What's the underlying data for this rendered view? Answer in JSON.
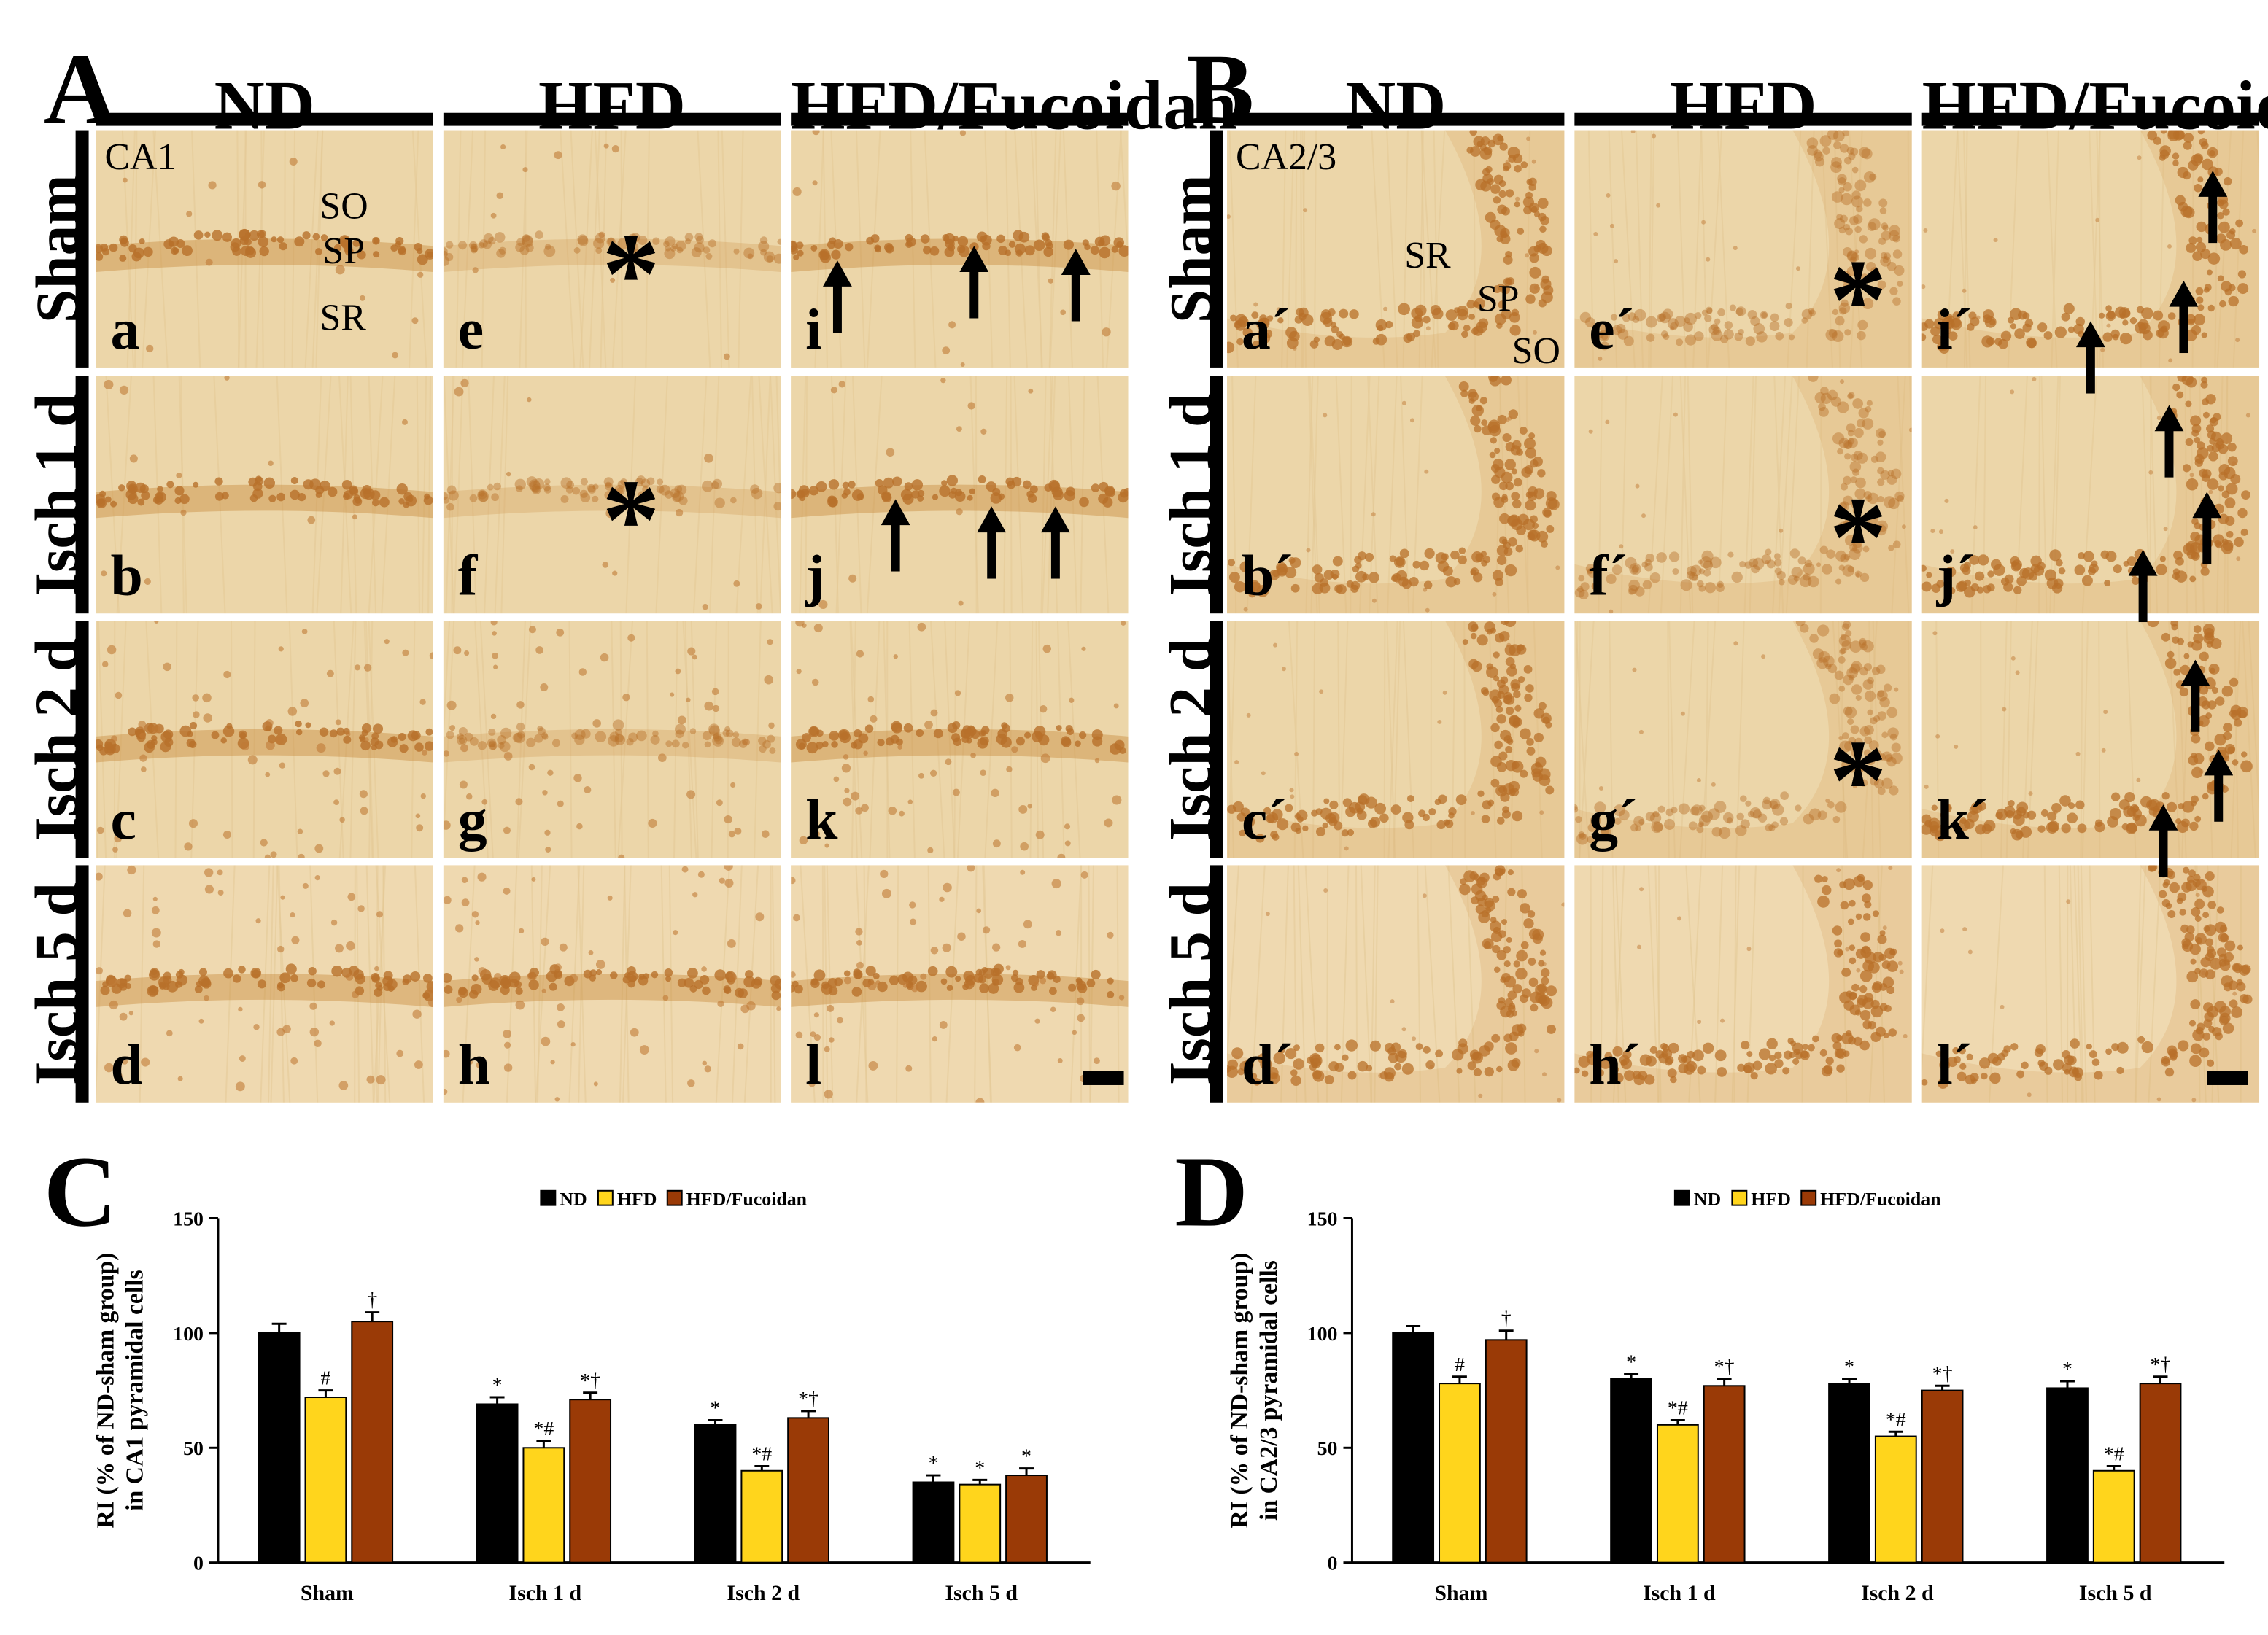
{
  "panels": {
    "A": {
      "letter": "A",
      "region": "CA1",
      "columns": [
        "ND",
        "HFD",
        "HFD/Fucoidan"
      ],
      "rows": [
        "Sham",
        "Isch 1 d",
        "Isch 2 d",
        "Isch 5 d"
      ],
      "tile_letters": [
        [
          "a",
          "e",
          "i"
        ],
        [
          "b",
          "f",
          "j"
        ],
        [
          "c",
          "g",
          "k"
        ],
        [
          "d",
          "h",
          "l"
        ]
      ],
      "layers": {
        "so": "SO",
        "sp": "SP",
        "sr": "SR"
      }
    },
    "B": {
      "letter": "B",
      "region": "CA2/3",
      "columns": [
        "ND",
        "HFD",
        "HFD/Fucoidan"
      ],
      "rows": [
        "Sham",
        "Isch 1 d",
        "Isch 2 d",
        "Isch 5 d"
      ],
      "tile_letters": [
        [
          "a´",
          "e´",
          "i´"
        ],
        [
          "b´",
          "f´",
          "j´"
        ],
        [
          "c´",
          "g´",
          "k´"
        ],
        [
          "d´",
          "h´",
          "l´"
        ]
      ],
      "layers": {
        "sr": "SR",
        "sp": "SP",
        "so": "SO"
      }
    },
    "C": {
      "letter": "C"
    },
    "D": {
      "letter": "D"
    }
  },
  "symbols": {
    "asterisk": "*"
  },
  "colors": {
    "nd": "#000000",
    "hfd": "#ffd51c",
    "hfd_fucoidan": "#9a3a06",
    "tissue": "#ecd5a8",
    "stain": "#c98a3e"
  },
  "chart_data": [
    {
      "type": "bar",
      "panel": "C",
      "categories": [
        "Sham",
        "Isch 1 d",
        "Isch 2 d",
        "Isch 5 d"
      ],
      "series": [
        {
          "name": "ND",
          "values": [
            100,
            69,
            60,
            35
          ],
          "errors": [
            4,
            3,
            2,
            3
          ],
          "annotations": [
            "",
            "*",
            "*",
            "*"
          ]
        },
        {
          "name": "HFD",
          "values": [
            72,
            50,
            40,
            34
          ],
          "errors": [
            3,
            3,
            2,
            2
          ],
          "annotations": [
            "#",
            "*#",
            "*#",
            "*"
          ]
        },
        {
          "name": "HFD/Fucoidan",
          "values": [
            105,
            71,
            63,
            38
          ],
          "errors": [
            4,
            3,
            3,
            3
          ],
          "annotations": [
            "†",
            "*†",
            "*†",
            "*"
          ]
        }
      ],
      "ylabel_line1": "RI (% of ND-sham group)",
      "ylabel_line2": "in CA1 pyramidal cells",
      "yticks": [
        0,
        50,
        100,
        150
      ],
      "ylim": [
        0,
        150
      ],
      "legend_position": "top"
    },
    {
      "type": "bar",
      "panel": "D",
      "categories": [
        "Sham",
        "Isch 1 d",
        "Isch 2 d",
        "Isch 5 d"
      ],
      "series": [
        {
          "name": "ND",
          "values": [
            100,
            80,
            78,
            76
          ],
          "errors": [
            3,
            2,
            2,
            3
          ],
          "annotations": [
            "",
            "*",
            "*",
            "*"
          ]
        },
        {
          "name": "HFD",
          "values": [
            78,
            60,
            55,
            40
          ],
          "errors": [
            3,
            2,
            2,
            2
          ],
          "annotations": [
            "#",
            "*#",
            "*#",
            "*#"
          ]
        },
        {
          "name": "HFD/Fucoidan",
          "values": [
            97,
            77,
            75,
            78
          ],
          "errors": [
            4,
            3,
            2,
            3
          ],
          "annotations": [
            "†",
            "*†",
            "*†",
            "*†"
          ]
        }
      ],
      "ylabel_line1": "RI (% of ND-sham group)",
      "ylabel_line2": "in CA2/3 pyramidal cells",
      "yticks": [
        0,
        50,
        100,
        150
      ],
      "ylim": [
        0,
        150
      ],
      "legend_position": "top"
    }
  ]
}
